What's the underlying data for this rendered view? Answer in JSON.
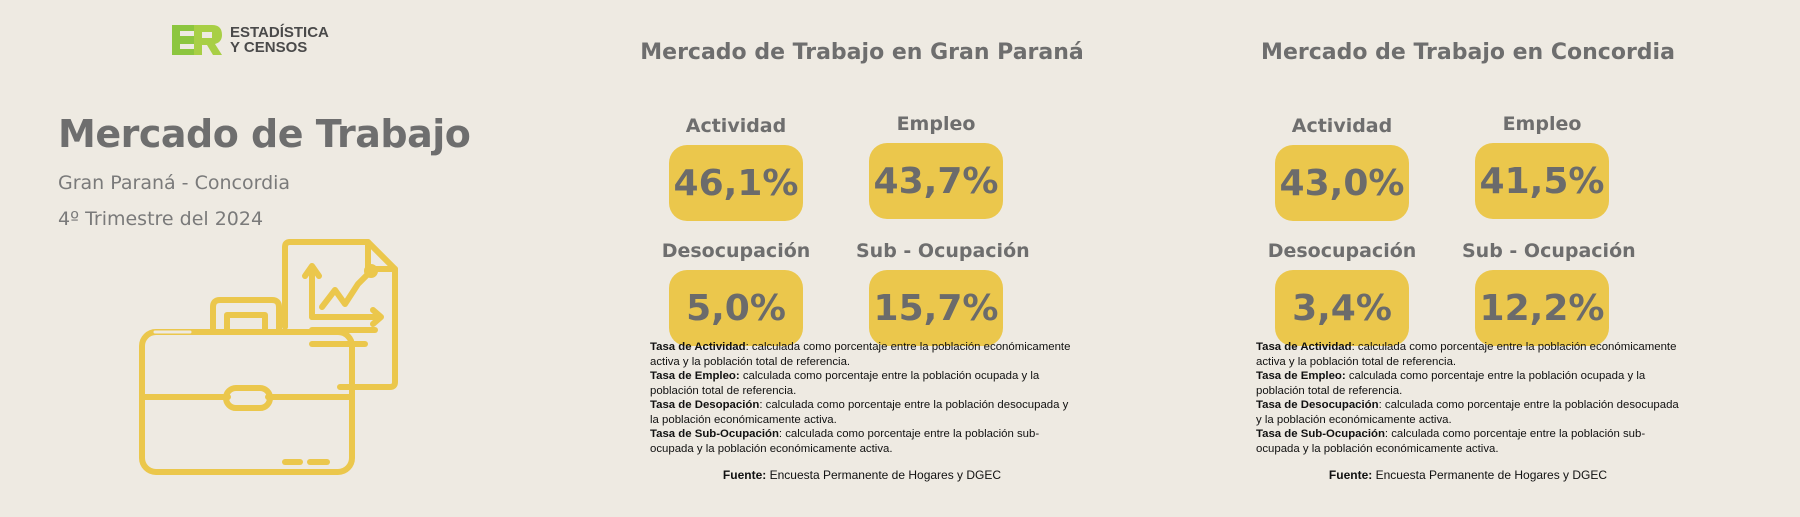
{
  "logo": {
    "mark": "ER",
    "line1": "ESTADÍSTICA",
    "line2": "Y CENSOS"
  },
  "header": {
    "title": "Mercado de Trabajo",
    "subtitle": "Gran Paraná - Concordia",
    "period": "4º Trimestre del 2024"
  },
  "icons": {
    "illustration": "briefcase-chart-icon"
  },
  "colors": {
    "accent": "#ebc74c",
    "background": "#eeeae2",
    "logo_green": "#8cc63f"
  },
  "panels": [
    {
      "title": "Mercado de Trabajo en Gran Paraná",
      "metrics": [
        {
          "label": "Actividad",
          "value": "46,1%"
        },
        {
          "label": "Empleo",
          "value": "43,7%"
        },
        {
          "label": "Desocupación",
          "value": "5,0%"
        },
        {
          "label": "Sub - Ocupación",
          "value": "15,7%"
        }
      ],
      "notes": [
        {
          "term": "Tasa de Actividad",
          "text": ":  calculada como porcentaje entre la población económicamente activa y la población total de referencia."
        },
        {
          "term": "Tasa de Empleo:",
          "text": " calculada como porcentaje entre la población ocupada y la población total de referencia."
        },
        {
          "term": "Tasa de Desopación",
          "text": ": calculada como porcentaje entre la población desocupada y la población económicamente activa."
        },
        {
          "term": "Tasa de Sub-Ocupación",
          "text": ": calculada como porcentaje entre la población sub-ocupada y la población económicamente activa."
        }
      ],
      "source_label": "Fuente:",
      "source_text": " Encuesta Permanente de Hogares y DGEC"
    },
    {
      "title": "Mercado de Trabajo en Concordia",
      "metrics": [
        {
          "label": "Actividad",
          "value": "43,0%"
        },
        {
          "label": "Empleo",
          "value": "41,5%"
        },
        {
          "label": "Desocupación",
          "value": "3,4%"
        },
        {
          "label": "Sub - Ocupación",
          "value": "12,2%"
        }
      ],
      "notes": [
        {
          "term": "Tasa de Actividad",
          "text": ":  calculada como porcentaje entre la población económicamente activa y la población total de referencia."
        },
        {
          "term": "Tasa de Empleo:",
          "text": " calculada como porcentaje entre la población ocupada y la población total de referencia."
        },
        {
          "term": "Tasa de Desocupación",
          "text": ": calculada como porcentaje entre la población desocupada y la población económicamente activa."
        },
        {
          "term": "Tasa de Sub-Ocupación",
          "text": ": calculada como porcentaje entre la población sub-ocupada y la población económicamente activa."
        }
      ],
      "source_label": "Fuente:",
      "source_text": " Encuesta Permanente de Hogares y DGEC"
    }
  ]
}
